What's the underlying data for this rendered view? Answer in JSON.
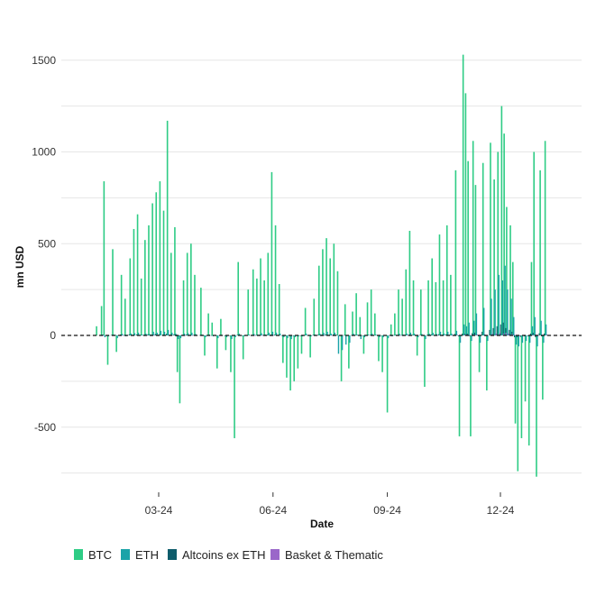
{
  "chart_data": {
    "type": "bar",
    "title": "",
    "xlabel": "Date",
    "ylabel": "mn USD",
    "ylim": [
      -750,
      1500
    ],
    "y_ticks": [
      "1500",
      "1000",
      "500",
      "0",
      "-500"
    ],
    "x_ticks": [
      {
        "label": "03-24",
        "date": "2024-03-01"
      },
      {
        "label": "06-24",
        "date": "2024-06-01"
      },
      {
        "label": "09-24",
        "date": "2024-09-01"
      },
      {
        "label": "12-24",
        "date": "2024-12-01"
      }
    ],
    "grid": true,
    "zero_line": "dashed",
    "legend_position": "bottom",
    "series": [
      {
        "name": "BTC",
        "color": "#2ecc85"
      },
      {
        "name": "ETH",
        "color": "#1aa3a8"
      },
      {
        "name": "Altcoins ex ETH",
        "color": "#0e5c6b"
      },
      {
        "name": "Basket & Thematic",
        "color": "#9a67c9"
      }
    ],
    "flows": [
      {
        "date": "2024-01-11",
        "BTC": 50,
        "ETH": 0,
        "Altcoins ex ETH": 3,
        "Basket & Thematic": 0
      },
      {
        "date": "2024-01-15",
        "BTC": 160,
        "ETH": 5,
        "Altcoins ex ETH": 2,
        "Basket & Thematic": 1
      },
      {
        "date": "2024-01-17",
        "BTC": 840,
        "ETH": -10,
        "Altcoins ex ETH": 4,
        "Basket & Thematic": 0
      },
      {
        "date": "2024-01-20",
        "BTC": -160,
        "ETH": -5,
        "Altcoins ex ETH": -3,
        "Basket & Thematic": 0
      },
      {
        "date": "2024-01-24",
        "BTC": 470,
        "ETH": 5,
        "Altcoins ex ETH": 4,
        "Basket & Thematic": 2
      },
      {
        "date": "2024-01-27",
        "BTC": -90,
        "ETH": -15,
        "Altcoins ex ETH": 3,
        "Basket & Thematic": 0
      },
      {
        "date": "2024-01-31",
        "BTC": 330,
        "ETH": 8,
        "Altcoins ex ETH": 5,
        "Basket & Thematic": 1
      },
      {
        "date": "2024-02-03",
        "BTC": 200,
        "ETH": -5,
        "Altcoins ex ETH": 2,
        "Basket & Thematic": 0
      },
      {
        "date": "2024-02-07",
        "BTC": 420,
        "ETH": 10,
        "Altcoins ex ETH": 6,
        "Basket & Thematic": 1
      },
      {
        "date": "2024-02-10",
        "BTC": 580,
        "ETH": 12,
        "Altcoins ex ETH": 4,
        "Basket & Thematic": 0
      },
      {
        "date": "2024-02-13",
        "BTC": 660,
        "ETH": 15,
        "Altcoins ex ETH": 5,
        "Basket & Thematic": 2
      },
      {
        "date": "2024-02-16",
        "BTC": 310,
        "ETH": 5,
        "Altcoins ex ETH": 3,
        "Basket & Thematic": 0
      },
      {
        "date": "2024-02-19",
        "BTC": 520,
        "ETH": 10,
        "Altcoins ex ETH": 4,
        "Basket & Thematic": 1
      },
      {
        "date": "2024-02-22",
        "BTC": 600,
        "ETH": 8,
        "Altcoins ex ETH": 6,
        "Basket & Thematic": 0
      },
      {
        "date": "2024-02-25",
        "BTC": 720,
        "ETH": 20,
        "Altcoins ex ETH": 5,
        "Basket & Thematic": 2
      },
      {
        "date": "2024-02-28",
        "BTC": 780,
        "ETH": 15,
        "Altcoins ex ETH": 8,
        "Basket & Thematic": 1
      },
      {
        "date": "2024-03-02",
        "BTC": 840,
        "ETH": 25,
        "Altcoins ex ETH": 6,
        "Basket & Thematic": 0
      },
      {
        "date": "2024-03-05",
        "BTC": 680,
        "ETH": 20,
        "Altcoins ex ETH": 5,
        "Basket & Thematic": 1
      },
      {
        "date": "2024-03-08",
        "BTC": 1170,
        "ETH": 30,
        "Altcoins ex ETH": 9,
        "Basket & Thematic": 2
      },
      {
        "date": "2024-03-11",
        "BTC": 450,
        "ETH": 15,
        "Altcoins ex ETH": 4,
        "Basket & Thematic": 0
      },
      {
        "date": "2024-03-14",
        "BTC": 590,
        "ETH": 10,
        "Altcoins ex ETH": 6,
        "Basket & Thematic": 1
      },
      {
        "date": "2024-03-16",
        "BTC": -200,
        "ETH": -20,
        "Altcoins ex ETH": -5,
        "Basket & Thematic": 0
      },
      {
        "date": "2024-03-18",
        "BTC": -370,
        "ETH": -15,
        "Altcoins ex ETH": -4,
        "Basket & Thematic": 0
      },
      {
        "date": "2024-03-21",
        "BTC": 300,
        "ETH": 10,
        "Altcoins ex ETH": 3,
        "Basket & Thematic": 1
      },
      {
        "date": "2024-03-24",
        "BTC": 450,
        "ETH": 12,
        "Altcoins ex ETH": 5,
        "Basket & Thematic": 0
      },
      {
        "date": "2024-03-27",
        "BTC": 500,
        "ETH": 15,
        "Altcoins ex ETH": 4,
        "Basket & Thematic": 1
      },
      {
        "date": "2024-03-30",
        "BTC": 330,
        "ETH": 8,
        "Altcoins ex ETH": 3,
        "Basket & Thematic": 0
      },
      {
        "date": "2024-04-04",
        "BTC": 260,
        "ETH": 5,
        "Altcoins ex ETH": 2,
        "Basket & Thematic": 0
      },
      {
        "date": "2024-04-07",
        "BTC": -110,
        "ETH": -10,
        "Altcoins ex ETH": -2,
        "Basket & Thematic": 0
      },
      {
        "date": "2024-04-10",
        "BTC": 120,
        "ETH": 5,
        "Altcoins ex ETH": 2,
        "Basket & Thematic": 0
      },
      {
        "date": "2024-04-13",
        "BTC": 70,
        "ETH": -5,
        "Altcoins ex ETH": 1,
        "Basket & Thematic": 0
      },
      {
        "date": "2024-04-17",
        "BTC": -180,
        "ETH": -15,
        "Altcoins ex ETH": -3,
        "Basket & Thematic": 0
      },
      {
        "date": "2024-04-20",
        "BTC": 90,
        "ETH": 3,
        "Altcoins ex ETH": 2,
        "Basket & Thematic": 0
      },
      {
        "date": "2024-04-24",
        "BTC": -80,
        "ETH": -10,
        "Altcoins ex ETH": -2,
        "Basket & Thematic": 0
      },
      {
        "date": "2024-04-28",
        "BTC": -200,
        "ETH": -20,
        "Altcoins ex ETH": -3,
        "Basket & Thematic": 0
      },
      {
        "date": "2024-05-01",
        "BTC": -560,
        "ETH": -10,
        "Altcoins ex ETH": -2,
        "Basket & Thematic": 0
      },
      {
        "date": "2024-05-04",
        "BTC": 400,
        "ETH": 10,
        "Altcoins ex ETH": 3,
        "Basket & Thematic": 0
      },
      {
        "date": "2024-05-08",
        "BTC": -130,
        "ETH": -5,
        "Altcoins ex ETH": -2,
        "Basket & Thematic": 0
      },
      {
        "date": "2024-05-12",
        "BTC": 250,
        "ETH": 5,
        "Altcoins ex ETH": 2,
        "Basket & Thematic": 0
      },
      {
        "date": "2024-05-16",
        "BTC": 360,
        "ETH": 8,
        "Altcoins ex ETH": 3,
        "Basket & Thematic": 1
      },
      {
        "date": "2024-05-19",
        "BTC": 310,
        "ETH": 5,
        "Altcoins ex ETH": 2,
        "Basket & Thematic": 0
      },
      {
        "date": "2024-05-22",
        "BTC": 420,
        "ETH": 12,
        "Altcoins ex ETH": 4,
        "Basket & Thematic": 1
      },
      {
        "date": "2024-05-25",
        "BTC": 300,
        "ETH": 5,
        "Altcoins ex ETH": 3,
        "Basket & Thematic": 0
      },
      {
        "date": "2024-05-28",
        "BTC": 450,
        "ETH": 15,
        "Altcoins ex ETH": 4,
        "Basket & Thematic": 1
      },
      {
        "date": "2024-05-31",
        "BTC": 890,
        "ETH": 20,
        "Altcoins ex ETH": 5,
        "Basket & Thematic": 2
      },
      {
        "date": "2024-06-03",
        "BTC": 600,
        "ETH": 15,
        "Altcoins ex ETH": 4,
        "Basket & Thematic": 1
      },
      {
        "date": "2024-06-06",
        "BTC": 280,
        "ETH": 10,
        "Altcoins ex ETH": 3,
        "Basket & Thematic": 0
      },
      {
        "date": "2024-06-09",
        "BTC": -150,
        "ETH": -10,
        "Altcoins ex ETH": -2,
        "Basket & Thematic": 0
      },
      {
        "date": "2024-06-12",
        "BTC": -230,
        "ETH": -15,
        "Altcoins ex ETH": -3,
        "Basket & Thematic": 0
      },
      {
        "date": "2024-06-15",
        "BTC": -300,
        "ETH": -20,
        "Altcoins ex ETH": -3,
        "Basket & Thematic": 0
      },
      {
        "date": "2024-06-18",
        "BTC": -250,
        "ETH": -10,
        "Altcoins ex ETH": -2,
        "Basket & Thematic": 0
      },
      {
        "date": "2024-06-21",
        "BTC": -180,
        "ETH": -5,
        "Altcoins ex ETH": -2,
        "Basket & Thematic": 0
      },
      {
        "date": "2024-06-24",
        "BTC": -100,
        "ETH": -5,
        "Altcoins ex ETH": -1,
        "Basket & Thematic": 0
      },
      {
        "date": "2024-06-27",
        "BTC": 150,
        "ETH": 10,
        "Altcoins ex ETH": 2,
        "Basket & Thematic": 0
      },
      {
        "date": "2024-07-01",
        "BTC": -120,
        "ETH": -5,
        "Altcoins ex ETH": -2,
        "Basket & Thematic": 0
      },
      {
        "date": "2024-07-04",
        "BTC": 200,
        "ETH": 5,
        "Altcoins ex ETH": 3,
        "Basket & Thematic": 1
      },
      {
        "date": "2024-07-08",
        "BTC": 380,
        "ETH": 10,
        "Altcoins ex ETH": 4,
        "Basket & Thematic": 0
      },
      {
        "date": "2024-07-11",
        "BTC": 470,
        "ETH": 15,
        "Altcoins ex ETH": 5,
        "Basket & Thematic": 1
      },
      {
        "date": "2024-07-14",
        "BTC": 530,
        "ETH": 20,
        "Altcoins ex ETH": 6,
        "Basket & Thematic": 2
      },
      {
        "date": "2024-07-17",
        "BTC": 420,
        "ETH": 10,
        "Altcoins ex ETH": 4,
        "Basket & Thematic": 1
      },
      {
        "date": "2024-07-20",
        "BTC": 500,
        "ETH": 15,
        "Altcoins ex ETH": 5,
        "Basket & Thematic": 0
      },
      {
        "date": "2024-07-23",
        "BTC": 350,
        "ETH": -100,
        "Altcoins ex ETH": 3,
        "Basket & Thematic": 1
      },
      {
        "date": "2024-07-26",
        "BTC": -250,
        "ETH": -80,
        "Altcoins ex ETH": -3,
        "Basket & Thematic": 0
      },
      {
        "date": "2024-07-29",
        "BTC": 170,
        "ETH": -50,
        "Altcoins ex ETH": 2,
        "Basket & Thematic": 0
      },
      {
        "date": "2024-08-01",
        "BTC": -180,
        "ETH": -40,
        "Altcoins ex ETH": -2,
        "Basket & Thematic": 0
      },
      {
        "date": "2024-08-04",
        "BTC": 130,
        "ETH": 10,
        "Altcoins ex ETH": 2,
        "Basket & Thematic": 0
      },
      {
        "date": "2024-08-07",
        "BTC": 230,
        "ETH": 5,
        "Altcoins ex ETH": 3,
        "Basket & Thematic": 1
      },
      {
        "date": "2024-08-10",
        "BTC": 100,
        "ETH": -20,
        "Altcoins ex ETH": 2,
        "Basket & Thematic": 0
      },
      {
        "date": "2024-08-13",
        "BTC": -100,
        "ETH": -10,
        "Altcoins ex ETH": -2,
        "Basket & Thematic": 0
      },
      {
        "date": "2024-08-16",
        "BTC": 180,
        "ETH": 5,
        "Altcoins ex ETH": 2,
        "Basket & Thematic": 0
      },
      {
        "date": "2024-08-19",
        "BTC": 250,
        "ETH": 10,
        "Altcoins ex ETH": 3,
        "Basket & Thematic": 1
      },
      {
        "date": "2024-08-22",
        "BTC": 120,
        "ETH": 5,
        "Altcoins ex ETH": 2,
        "Basket & Thematic": 0
      },
      {
        "date": "2024-08-25",
        "BTC": -140,
        "ETH": -10,
        "Altcoins ex ETH": -2,
        "Basket & Thematic": 0
      },
      {
        "date": "2024-08-28",
        "BTC": -200,
        "ETH": -10,
        "Altcoins ex ETH": -2,
        "Basket & Thematic": 0
      },
      {
        "date": "2024-09-01",
        "BTC": -420,
        "ETH": -15,
        "Altcoins ex ETH": -3,
        "Basket & Thematic": 0
      },
      {
        "date": "2024-09-04",
        "BTC": 60,
        "ETH": -5,
        "Altcoins ex ETH": 1,
        "Basket & Thematic": 0
      },
      {
        "date": "2024-09-07",
        "BTC": 120,
        "ETH": 5,
        "Altcoins ex ETH": 2,
        "Basket & Thematic": 0
      },
      {
        "date": "2024-09-10",
        "BTC": 250,
        "ETH": 10,
        "Altcoins ex ETH": 3,
        "Basket & Thematic": 1
      },
      {
        "date": "2024-09-13",
        "BTC": 200,
        "ETH": 5,
        "Altcoins ex ETH": 2,
        "Basket & Thematic": 0
      },
      {
        "date": "2024-09-16",
        "BTC": 360,
        "ETH": 10,
        "Altcoins ex ETH": 4,
        "Basket & Thematic": 1
      },
      {
        "date": "2024-09-19",
        "BTC": 570,
        "ETH": 15,
        "Altcoins ex ETH": 5,
        "Basket & Thematic": 0
      },
      {
        "date": "2024-09-22",
        "BTC": 300,
        "ETH": 10,
        "Altcoins ex ETH": 3,
        "Basket & Thematic": 1
      },
      {
        "date": "2024-09-25",
        "BTC": -110,
        "ETH": -10,
        "Altcoins ex ETH": -2,
        "Basket & Thematic": 0
      },
      {
        "date": "2024-09-28",
        "BTC": 250,
        "ETH": 8,
        "Altcoins ex ETH": 3,
        "Basket & Thematic": 0
      },
      {
        "date": "2024-10-01",
        "BTC": -280,
        "ETH": -20,
        "Altcoins ex ETH": -3,
        "Basket & Thematic": 0
      },
      {
        "date": "2024-10-04",
        "BTC": 300,
        "ETH": 10,
        "Altcoins ex ETH": 4,
        "Basket & Thematic": 1
      },
      {
        "date": "2024-10-07",
        "BTC": 420,
        "ETH": 15,
        "Altcoins ex ETH": 5,
        "Basket & Thematic": 0
      },
      {
        "date": "2024-10-10",
        "BTC": 290,
        "ETH": 8,
        "Altcoins ex ETH": 3,
        "Basket & Thematic": 1
      },
      {
        "date": "2024-10-13",
        "BTC": 550,
        "ETH": 20,
        "Altcoins ex ETH": 6,
        "Basket & Thematic": 2
      },
      {
        "date": "2024-10-16",
        "BTC": 300,
        "ETH": 10,
        "Altcoins ex ETH": 4,
        "Basket & Thematic": 0
      },
      {
        "date": "2024-10-19",
        "BTC": 600,
        "ETH": 20,
        "Altcoins ex ETH": 6,
        "Basket & Thematic": 2
      },
      {
        "date": "2024-10-22",
        "BTC": 330,
        "ETH": 10,
        "Altcoins ex ETH": 4,
        "Basket & Thematic": 1
      },
      {
        "date": "2024-10-26",
        "BTC": 900,
        "ETH": 25,
        "Altcoins ex ETH": 8,
        "Basket & Thematic": 3
      },
      {
        "date": "2024-10-29",
        "BTC": -550,
        "ETH": -40,
        "Altcoins ex ETH": -5,
        "Basket & Thematic": 0
      },
      {
        "date": "2024-11-01",
        "BTC": 1530,
        "ETH": 60,
        "Altcoins ex ETH": 10,
        "Basket & Thematic": 4
      },
      {
        "date": "2024-11-03",
        "BTC": 1320,
        "ETH": 50,
        "Altcoins ex ETH": 8,
        "Basket & Thematic": 3
      },
      {
        "date": "2024-11-05",
        "BTC": 950,
        "ETH": 70,
        "Altcoins ex ETH": 10,
        "Basket & Thematic": 4
      },
      {
        "date": "2024-11-07",
        "BTC": -550,
        "ETH": -30,
        "Altcoins ex ETH": -5,
        "Basket & Thematic": 0
      },
      {
        "date": "2024-11-09",
        "BTC": 1060,
        "ETH": 80,
        "Altcoins ex ETH": 12,
        "Basket & Thematic": 5
      },
      {
        "date": "2024-11-11",
        "BTC": 820,
        "ETH": 120,
        "Altcoins ex ETH": 15,
        "Basket & Thematic": 5
      },
      {
        "date": "2024-11-14",
        "BTC": -200,
        "ETH": -40,
        "Altcoins ex ETH": -5,
        "Basket & Thematic": 0
      },
      {
        "date": "2024-11-17",
        "BTC": 940,
        "ETH": 150,
        "Altcoins ex ETH": 20,
        "Basket & Thematic": 6
      },
      {
        "date": "2024-11-20",
        "BTC": -300,
        "ETH": -30,
        "Altcoins ex ETH": -4,
        "Basket & Thematic": 0
      },
      {
        "date": "2024-11-23",
        "BTC": 1050,
        "ETH": 200,
        "Altcoins ex ETH": 30,
        "Basket & Thematic": 8
      },
      {
        "date": "2024-11-26",
        "BTC": 850,
        "ETH": 250,
        "Altcoins ex ETH": 40,
        "Basket & Thematic": 10
      },
      {
        "date": "2024-11-29",
        "BTC": 1000,
        "ETH": 330,
        "Altcoins ex ETH": 50,
        "Basket & Thematic": 12
      },
      {
        "date": "2024-12-02",
        "BTC": 1250,
        "ETH": 300,
        "Altcoins ex ETH": 60,
        "Basket & Thematic": 10
      },
      {
        "date": "2024-12-04",
        "BTC": 1100,
        "ETH": 380,
        "Altcoins ex ETH": 70,
        "Basket & Thematic": 15
      },
      {
        "date": "2024-12-06",
        "BTC": 700,
        "ETH": 250,
        "Altcoins ex ETH": 40,
        "Basket & Thematic": 10
      },
      {
        "date": "2024-12-09",
        "BTC": 600,
        "ETH": 200,
        "Altcoins ex ETH": 30,
        "Basket & Thematic": 8
      },
      {
        "date": "2024-12-11",
        "BTC": 400,
        "ETH": 100,
        "Altcoins ex ETH": 20,
        "Basket & Thematic": 5
      },
      {
        "date": "2024-12-13",
        "BTC": -480,
        "ETH": -50,
        "Altcoins ex ETH": -10,
        "Basket & Thematic": 0
      },
      {
        "date": "2024-12-15",
        "BTC": -740,
        "ETH": -60,
        "Altcoins ex ETH": -10,
        "Basket & Thematic": -5
      },
      {
        "date": "2024-12-18",
        "BTC": -560,
        "ETH": -40,
        "Altcoins ex ETH": -8,
        "Basket & Thematic": 0
      },
      {
        "date": "2024-12-21",
        "BTC": -360,
        "ETH": -30,
        "Altcoins ex ETH": -5,
        "Basket & Thematic": 0
      },
      {
        "date": "2024-12-24",
        "BTC": -600,
        "ETH": -40,
        "Altcoins ex ETH": -5,
        "Basket & Thematic": 0
      },
      {
        "date": "2024-12-26",
        "BTC": 400,
        "ETH": 50,
        "Altcoins ex ETH": 10,
        "Basket & Thematic": 3
      },
      {
        "date": "2024-12-28",
        "BTC": 1000,
        "ETH": 100,
        "Altcoins ex ETH": 15,
        "Basket & Thematic": 5
      },
      {
        "date": "2024-12-30",
        "BTC": -770,
        "ETH": -60,
        "Altcoins ex ETH": -10,
        "Basket & Thematic": -3
      },
      {
        "date": "2025-01-02",
        "BTC": 900,
        "ETH": 80,
        "Altcoins ex ETH": 12,
        "Basket & Thematic": 4
      },
      {
        "date": "2025-01-04",
        "BTC": -350,
        "ETH": -40,
        "Altcoins ex ETH": -5,
        "Basket & Thematic": 0
      },
      {
        "date": "2025-01-06",
        "BTC": 1060,
        "ETH": 60,
        "Altcoins ex ETH": 10,
        "Basket & Thematic": 5
      }
    ]
  }
}
